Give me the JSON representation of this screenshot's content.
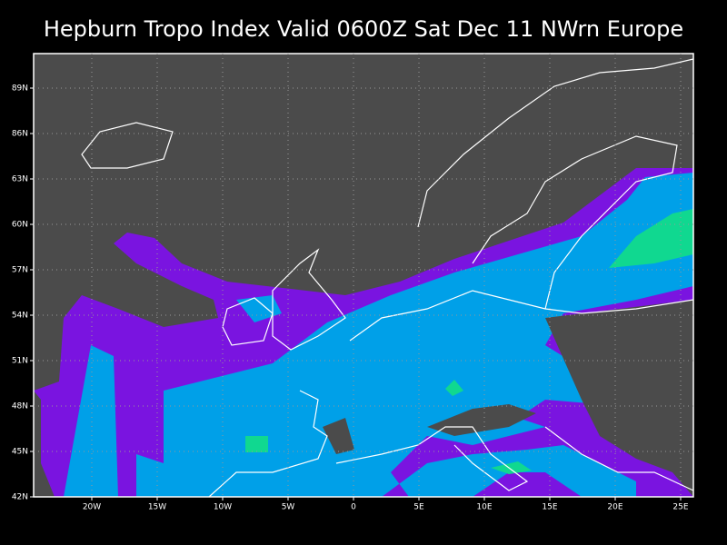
{
  "title": "Hepburn Tropo Index Valid 0600Z Sat Dec 11 NWrn Europe",
  "lat_labels": [
    "42N",
    "45N",
    "48N",
    "51N",
    "54N",
    "57N",
    "60N",
    "63N",
    "86N",
    "89N"
  ],
  "lon_labels": [
    "20W",
    "15W",
    "10W",
    "5W",
    "0",
    "5E",
    "10E",
    "15E",
    "20E",
    "25E"
  ]
}
